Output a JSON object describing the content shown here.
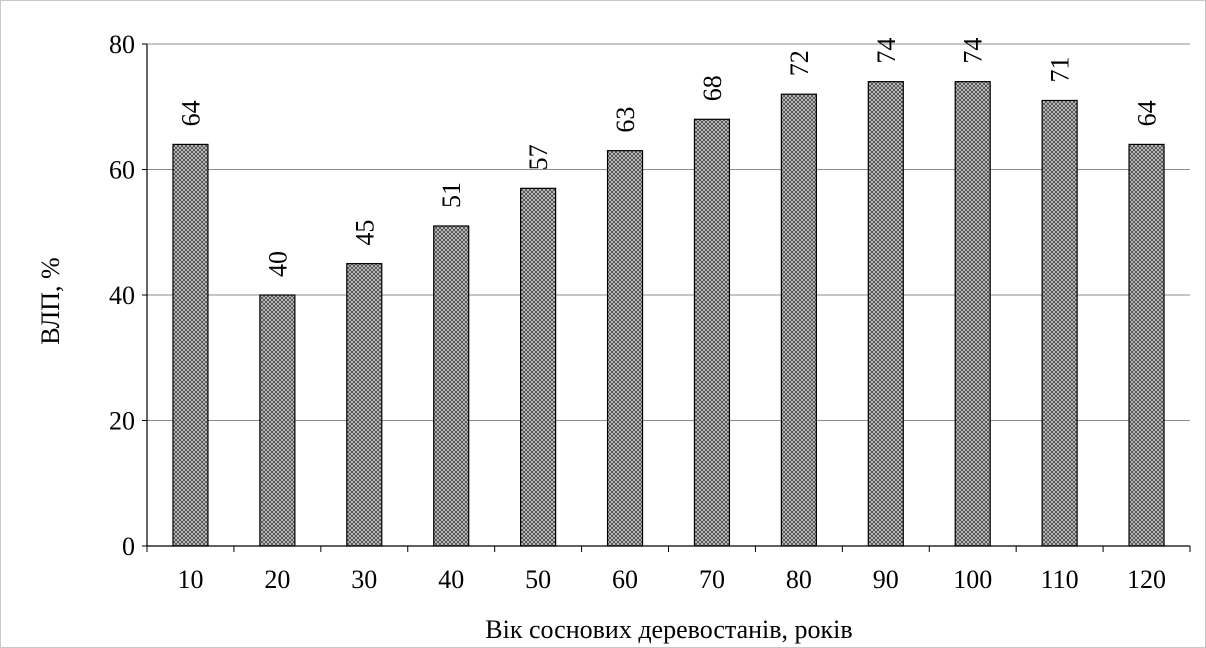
{
  "chart_data": {
    "type": "bar",
    "categories": [
      "10",
      "20",
      "30",
      "40",
      "50",
      "60",
      "70",
      "80",
      "90",
      "100",
      "110",
      "120"
    ],
    "values": [
      64,
      40,
      45,
      51,
      57,
      63,
      68,
      72,
      74,
      74,
      71,
      64
    ],
    "data_labels": [
      "64",
      "40",
      "45",
      "51",
      "57",
      "63",
      "68",
      "72",
      "74",
      "74",
      "71",
      "64"
    ],
    "title": "",
    "xlabel": "Вік соснових деревостанів, років",
    "ylabel": "ВЛП, %",
    "ylim": [
      0,
      80
    ],
    "yticks": [
      "0",
      "20",
      "40",
      "60",
      "80"
    ],
    "grid": true,
    "bar_fill": "#8c8c8c",
    "bar_pattern": "crosshatch",
    "legend": "none"
  }
}
